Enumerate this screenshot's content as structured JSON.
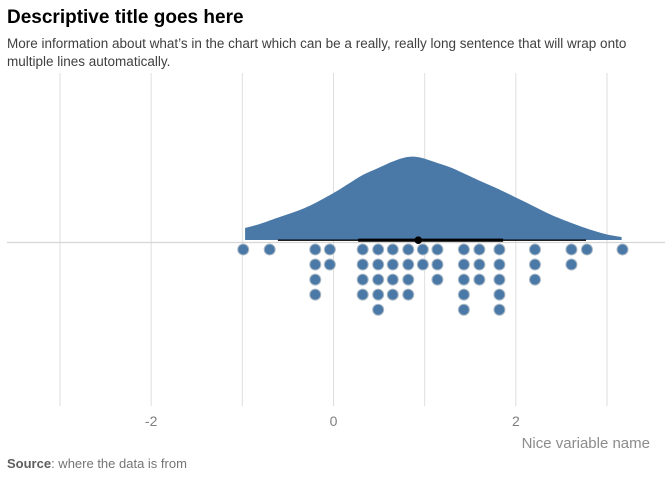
{
  "header": {
    "title": "Descriptive title goes here",
    "subtitle": "More information about what’s in the chart which can be a really, really long sentence that will wrap onto multiple lines automatically."
  },
  "source": {
    "label": "Source",
    "text": ": where the data is from"
  },
  "chart_data": {
    "type": "raincloud",
    "description": "Trimmed density curve (half-eye) sitting on the axis line, a black median point with 66%/95% quantile interval bars, and a hanging stacked dotplot of the 50 individual observations below",
    "title": "Descriptive title goes here",
    "xlabel": "Nice variable name",
    "x_tick_labels": [
      "-2",
      "0",
      "2"
    ],
    "x_tick_values": [
      -2,
      0,
      2
    ],
    "x_gridline_values": [
      -3,
      -2,
      -1,
      0,
      1,
      2,
      3
    ],
    "xlim": [
      -3.6,
      3.65
    ],
    "grid": "vertical-only",
    "legend": "none",
    "n_points": 50,
    "interval": {
      "median": 0.93,
      "inner_interval": [
        0.27,
        1.86
      ],
      "outer_interval": [
        -0.61,
        2.77
      ]
    },
    "dot_columns": [
      {
        "x": -0.99,
        "count": 1
      },
      {
        "x": -0.7,
        "count": 1
      },
      {
        "x": -0.2,
        "count": 4
      },
      {
        "x": -0.04,
        "count": 2
      },
      {
        "x": 0.32,
        "count": 4
      },
      {
        "x": 0.49,
        "count": 5
      },
      {
        "x": 0.65,
        "count": 4
      },
      {
        "x": 0.82,
        "count": 4
      },
      {
        "x": 0.98,
        "count": 2
      },
      {
        "x": 1.14,
        "count": 3
      },
      {
        "x": 1.43,
        "count": 5
      },
      {
        "x": 1.6,
        "count": 3
      },
      {
        "x": 1.82,
        "count": 5
      },
      {
        "x": 2.21,
        "count": 3
      },
      {
        "x": 2.61,
        "count": 2
      },
      {
        "x": 2.78,
        "count": 1
      },
      {
        "x": 3.17,
        "count": 1
      }
    ],
    "density_profile": [
      [
        -0.97,
        0.145
      ],
      [
        -0.81,
        0.193
      ],
      [
        -0.59,
        0.277
      ],
      [
        -0.37,
        0.361
      ],
      [
        -0.2,
        0.446
      ],
      [
        0.0,
        0.566
      ],
      [
        0.16,
        0.675
      ],
      [
        0.32,
        0.783
      ],
      [
        0.49,
        0.867
      ],
      [
        0.65,
        0.946
      ],
      [
        0.81,
        1.0
      ],
      [
        0.95,
        0.994
      ],
      [
        1.14,
        0.928
      ],
      [
        1.3,
        0.867
      ],
      [
        1.42,
        0.807
      ],
      [
        1.61,
        0.711
      ],
      [
        1.82,
        0.608
      ],
      [
        2.0,
        0.512
      ],
      [
        2.19,
        0.41
      ],
      [
        2.38,
        0.307
      ],
      [
        2.61,
        0.205
      ],
      [
        2.81,
        0.127
      ],
      [
        2.98,
        0.072
      ],
      [
        3.09,
        0.048
      ],
      [
        3.16,
        0.036
      ]
    ],
    "colors": {
      "fill": "#4a79a8",
      "dot_stroke": "#a9b7c3",
      "interval": "#000000",
      "gridline": "#dedede",
      "axis_line": "#d6d6d6",
      "tick_label": "#7f7f7f",
      "axis_title": "#8c8c8c"
    }
  }
}
